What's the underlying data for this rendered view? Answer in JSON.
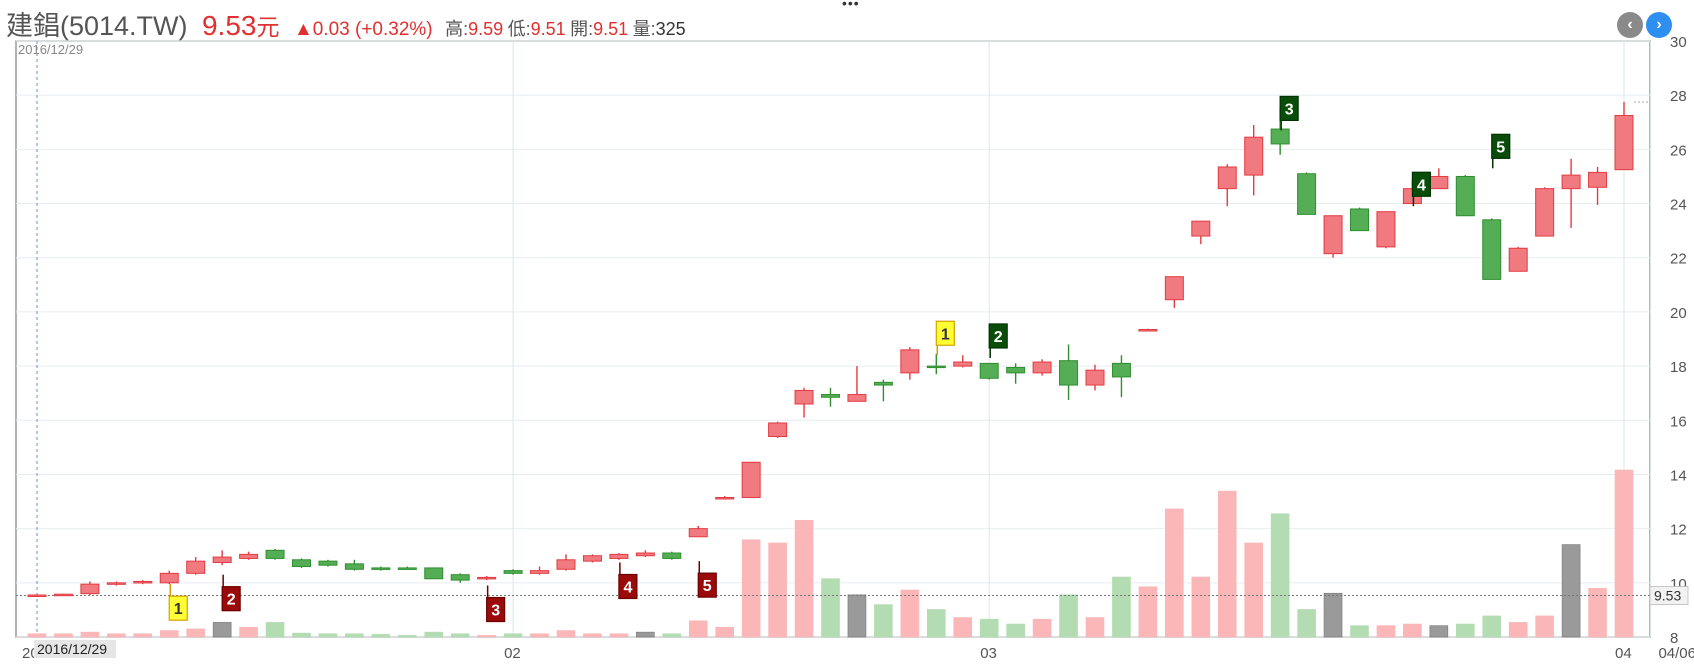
{
  "header": {
    "name": "建錩(5014.TW)",
    "price": "9.53",
    "unit": "元",
    "change": "▲0.03 (+0.32%)",
    "high_label": "高:",
    "high": "9.59",
    "low_label": "低:",
    "low": "9.51",
    "open_label": "開:",
    "open": "9.51",
    "volume_label": "量:",
    "volume": "325"
  },
  "nav": {
    "prev": "‹",
    "next": "›"
  },
  "chart_data": {
    "type": "candlestick",
    "start_date_label": "2016/12/29",
    "current_price_label": "9.53",
    "ylim": [
      8,
      30
    ],
    "y_ticks": [
      8,
      10,
      12,
      14,
      16,
      18,
      20,
      22,
      24,
      26,
      28,
      30
    ],
    "x_ticks": [
      {
        "label": "2016/12/29",
        "index": 0
      },
      {
        "label": "02",
        "index": 18
      },
      {
        "label": "03",
        "index": 36
      },
      {
        "label": "04",
        "index": 60
      },
      {
        "label": "04/06",
        "index": 61
      }
    ],
    "colors": {
      "up": "#f07a7f",
      "down": "#55ad55",
      "flat": "#8f8f8f",
      "vol_up": "#fbb6b8",
      "vol_down": "#b3dcb3",
      "vol_flat": "#9a9a9a"
    },
    "candles": [
      {
        "o": 9.52,
        "h": 9.58,
        "l": 9.5,
        "c": 9.55,
        "v": 0.1,
        "d": "up"
      },
      {
        "o": 9.55,
        "h": 9.6,
        "l": 9.52,
        "c": 9.58,
        "v": 0.1,
        "d": "up"
      },
      {
        "o": 9.6,
        "h": 10.05,
        "l": 9.55,
        "c": 9.95,
        "v": 0.15,
        "d": "up"
      },
      {
        "o": 9.95,
        "h": 10.05,
        "l": 9.9,
        "c": 10.0,
        "v": 0.1,
        "d": "up"
      },
      {
        "o": 10.0,
        "h": 10.1,
        "l": 9.95,
        "c": 10.05,
        "v": 0.1,
        "d": "up"
      },
      {
        "o": 10.0,
        "h": 10.45,
        "l": 9.95,
        "c": 10.35,
        "v": 0.2,
        "d": "up"
      },
      {
        "o": 10.35,
        "h": 10.95,
        "l": 10.3,
        "c": 10.8,
        "v": 0.25,
        "d": "up"
      },
      {
        "o": 10.95,
        "h": 11.2,
        "l": 10.65,
        "c": 10.75,
        "v": 0.45,
        "d": "flat"
      },
      {
        "o": 10.9,
        "h": 11.15,
        "l": 10.85,
        "c": 11.05,
        "v": 0.3,
        "d": "up"
      },
      {
        "o": 11.2,
        "h": 11.25,
        "l": 10.85,
        "c": 10.9,
        "v": 0.45,
        "d": "down"
      },
      {
        "o": 10.85,
        "h": 10.9,
        "l": 10.55,
        "c": 10.6,
        "v": 0.12,
        "d": "down"
      },
      {
        "o": 10.8,
        "h": 10.85,
        "l": 10.6,
        "c": 10.65,
        "v": 0.1,
        "d": "down"
      },
      {
        "o": 10.7,
        "h": 10.85,
        "l": 10.45,
        "c": 10.5,
        "v": 0.1,
        "d": "down"
      },
      {
        "o": 10.55,
        "h": 10.6,
        "l": 10.45,
        "c": 10.5,
        "v": 0.08,
        "d": "down"
      },
      {
        "o": 10.55,
        "h": 10.6,
        "l": 10.5,
        "c": 10.55,
        "v": 0.05,
        "d": "down"
      },
      {
        "o": 10.55,
        "h": 10.55,
        "l": 10.15,
        "c": 10.15,
        "v": 0.15,
        "d": "down"
      },
      {
        "o": 10.3,
        "h": 10.35,
        "l": 10.0,
        "c": 10.1,
        "v": 0.1,
        "d": "down"
      },
      {
        "o": 10.15,
        "h": 10.25,
        "l": 10.1,
        "c": 10.2,
        "v": 0.05,
        "d": "up"
      },
      {
        "o": 10.45,
        "h": 10.5,
        "l": 10.3,
        "c": 10.35,
        "v": 0.1,
        "d": "down"
      },
      {
        "o": 10.35,
        "h": 10.6,
        "l": 10.3,
        "c": 10.45,
        "v": 0.1,
        "d": "up"
      },
      {
        "o": 10.5,
        "h": 11.05,
        "l": 10.45,
        "c": 10.85,
        "v": 0.2,
        "d": "up"
      },
      {
        "o": 10.8,
        "h": 11.05,
        "l": 10.75,
        "c": 11.0,
        "v": 0.1,
        "d": "up"
      },
      {
        "o": 10.9,
        "h": 11.1,
        "l": 10.85,
        "c": 11.05,
        "v": 0.1,
        "d": "up"
      },
      {
        "o": 11.0,
        "h": 11.2,
        "l": 10.95,
        "c": 11.1,
        "v": 0.15,
        "d": "flat"
      },
      {
        "o": 11.1,
        "h": 11.15,
        "l": 10.85,
        "c": 10.9,
        "v": 0.1,
        "d": "down"
      },
      {
        "o": 11.7,
        "h": 12.1,
        "l": 11.7,
        "c": 12.0,
        "v": 0.5,
        "d": "up"
      },
      {
        "o": 13.15,
        "h": 13.2,
        "l": 13.1,
        "c": 13.15,
        "v": 0.3,
        "d": "up"
      },
      {
        "o": 13.15,
        "h": 14.45,
        "l": 13.15,
        "c": 14.45,
        "v": 3.0,
        "d": "up"
      },
      {
        "o": 15.4,
        "h": 15.95,
        "l": 15.35,
        "c": 15.9,
        "v": 2.9,
        "d": "up"
      },
      {
        "o": 16.6,
        "h": 17.2,
        "l": 16.1,
        "c": 17.1,
        "v": 3.6,
        "d": "up"
      },
      {
        "o": 16.85,
        "h": 17.2,
        "l": 16.5,
        "c": 16.95,
        "v": 1.8,
        "d": "down"
      },
      {
        "o": 16.7,
        "h": 18.0,
        "l": 16.7,
        "c": 16.95,
        "v": 1.3,
        "d": "flat"
      },
      {
        "o": 17.3,
        "h": 17.5,
        "l": 16.7,
        "c": 17.4,
        "v": 1.0,
        "d": "down"
      },
      {
        "o": 17.75,
        "h": 18.7,
        "l": 17.5,
        "c": 18.6,
        "v": 1.45,
        "d": "up"
      },
      {
        "o": 17.95,
        "h": 18.45,
        "l": 17.7,
        "c": 18.0,
        "v": 0.85,
        "d": "down"
      },
      {
        "o": 18.0,
        "h": 18.4,
        "l": 17.95,
        "c": 18.15,
        "v": 0.6,
        "d": "up"
      },
      {
        "o": 18.1,
        "h": 18.1,
        "l": 17.5,
        "c": 17.55,
        "v": 0.55,
        "d": "down"
      },
      {
        "o": 17.95,
        "h": 18.1,
        "l": 17.35,
        "c": 17.75,
        "v": 0.4,
        "d": "down"
      },
      {
        "o": 17.75,
        "h": 18.25,
        "l": 17.65,
        "c": 18.15,
        "v": 0.55,
        "d": "up"
      },
      {
        "o": 18.2,
        "h": 18.8,
        "l": 16.75,
        "c": 17.3,
        "v": 1.3,
        "d": "down"
      },
      {
        "o": 17.3,
        "h": 18.05,
        "l": 17.1,
        "c": 17.85,
        "v": 0.6,
        "d": "up"
      },
      {
        "o": 18.1,
        "h": 18.4,
        "l": 16.85,
        "c": 17.6,
        "v": 1.85,
        "d": "down"
      },
      {
        "o": 19.35,
        "h": 19.38,
        "l": 19.32,
        "c": 19.35,
        "v": 1.55,
        "d": "up"
      },
      {
        "o": 20.45,
        "h": 21.3,
        "l": 20.15,
        "c": 21.3,
        "v": 3.95,
        "d": "up"
      },
      {
        "o": 22.8,
        "h": 23.35,
        "l": 22.5,
        "c": 23.35,
        "v": 1.85,
        "d": "up"
      },
      {
        "o": 24.55,
        "h": 25.45,
        "l": 23.9,
        "c": 25.35,
        "v": 4.5,
        "d": "up"
      },
      {
        "o": 25.05,
        "h": 26.9,
        "l": 24.3,
        "c": 26.45,
        "v": 2.9,
        "d": "up"
      },
      {
        "o": 26.75,
        "h": 27.55,
        "l": 25.8,
        "c": 26.2,
        "v": 3.8,
        "d": "down"
      },
      {
        "o": 25.1,
        "h": 25.15,
        "l": 23.6,
        "c": 23.6,
        "v": 0.85,
        "d": "down"
      },
      {
        "o": 22.15,
        "h": 23.55,
        "l": 22.0,
        "c": 23.55,
        "v": 1.35,
        "d": "flat"
      },
      {
        "o": 23.8,
        "h": 23.85,
        "l": 23.0,
        "c": 23.0,
        "v": 0.35,
        "d": "down"
      },
      {
        "o": 22.4,
        "h": 23.7,
        "l": 22.35,
        "c": 23.7,
        "v": 0.35,
        "d": "up"
      },
      {
        "o": 24.0,
        "h": 24.9,
        "l": 24.0,
        "c": 24.55,
        "v": 0.4,
        "d": "up"
      },
      {
        "o": 25.0,
        "h": 25.3,
        "l": 24.55,
        "c": 24.55,
        "v": 0.35,
        "d": "flat"
      },
      {
        "o": 25.0,
        "h": 25.05,
        "l": 23.55,
        "c": 23.55,
        "v": 0.4,
        "d": "down"
      },
      {
        "o": 23.4,
        "h": 23.45,
        "l": 21.2,
        "c": 21.2,
        "v": 0.65,
        "d": "down"
      },
      {
        "o": 21.5,
        "h": 22.4,
        "l": 21.5,
        "c": 22.35,
        "v": 0.45,
        "d": "up"
      },
      {
        "o": 22.8,
        "h": 24.6,
        "l": 22.8,
        "c": 24.55,
        "v": 0.65,
        "d": "up"
      },
      {
        "o": 25.05,
        "h": 25.65,
        "l": 23.1,
        "c": 24.55,
        "v": 2.85,
        "d": "flat"
      },
      {
        "o": 24.6,
        "h": 25.35,
        "l": 23.95,
        "c": 25.15,
        "v": 1.5,
        "d": "up"
      },
      {
        "o": 25.25,
        "h": 27.75,
        "l": 25.25,
        "c": 27.25,
        "v": 5.15,
        "d": "up"
      }
    ],
    "markers": [
      {
        "label": "1",
        "index": 5,
        "side": "below",
        "style": "yellow",
        "price": 9.95
      },
      {
        "label": "2",
        "index": 7,
        "side": "below",
        "style": "darkred",
        "price": 10.3
      },
      {
        "label": "3",
        "index": 17,
        "side": "below",
        "style": "darkred",
        "price": 9.9
      },
      {
        "label": "4",
        "index": 22,
        "side": "below",
        "style": "darkred",
        "price": 10.75
      },
      {
        "label": "5",
        "index": 25,
        "side": "below",
        "style": "darkred",
        "price": 10.8
      },
      {
        "label": "1",
        "index": 34,
        "side": "above",
        "style": "yellow",
        "price": 18.4
      },
      {
        "label": "2",
        "index": 36,
        "side": "above",
        "style": "darkgreen",
        "price": 18.3
      },
      {
        "label": "3",
        "index": 47,
        "side": "above",
        "style": "darkgreen",
        "price": 26.7
      },
      {
        "label": "4",
        "index": 52,
        "side": "above",
        "style": "darkgreen",
        "price": 23.9
      },
      {
        "label": "5",
        "index": 55,
        "side": "above",
        "style": "darkgreen",
        "price": 25.3
      }
    ]
  }
}
